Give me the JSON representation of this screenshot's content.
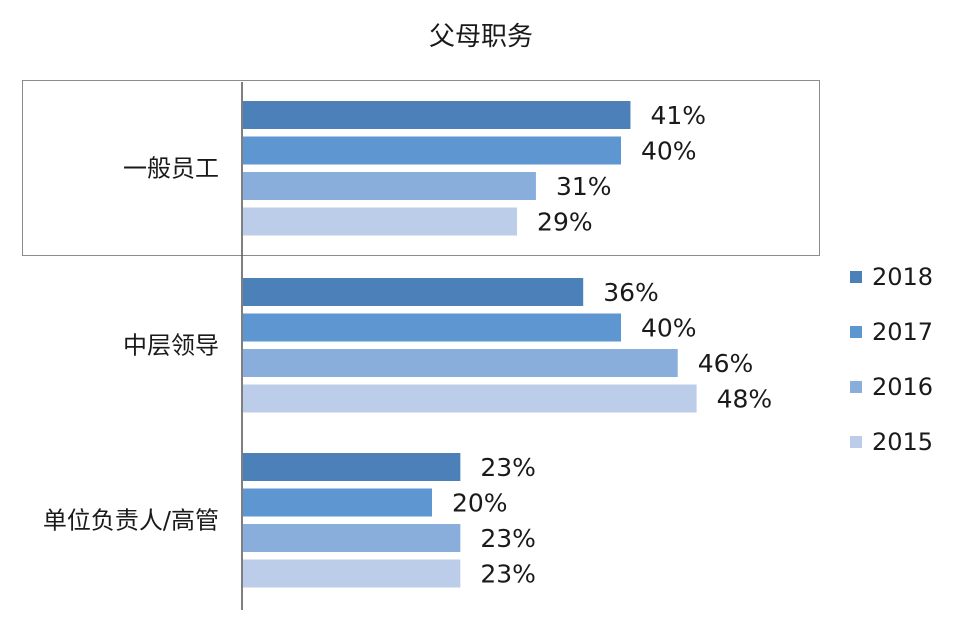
{
  "chart_data": {
    "type": "bar",
    "orientation": "horizontal",
    "title": "父母职务",
    "categories": [
      "一般员工",
      "中层领导",
      "单位负责人/高管"
    ],
    "series": [
      {
        "name": "2018",
        "color": "#4b80b8",
        "values": [
          41,
          36,
          23
        ],
        "labels": [
          "41%",
          "36%",
          "23%"
        ]
      },
      {
        "name": "2017",
        "color": "#5e96d2",
        "values": [
          40,
          40,
          20
        ],
        "labels": [
          "40%",
          "40%",
          "20%"
        ]
      },
      {
        "name": "2016",
        "color": "#8aaedc",
        "values": [
          31,
          46,
          23
        ],
        "labels": [
          "31%",
          "46%",
          "23%"
        ]
      },
      {
        "name": "2015",
        "color": "#bccde9",
        "values": [
          29,
          48,
          23
        ],
        "labels": [
          "29%",
          "48%",
          "23%"
        ]
      }
    ],
    "xlim": [
      0,
      60
    ],
    "grid": false,
    "legend_position": "right",
    "highlighted_category": "一般员工"
  }
}
